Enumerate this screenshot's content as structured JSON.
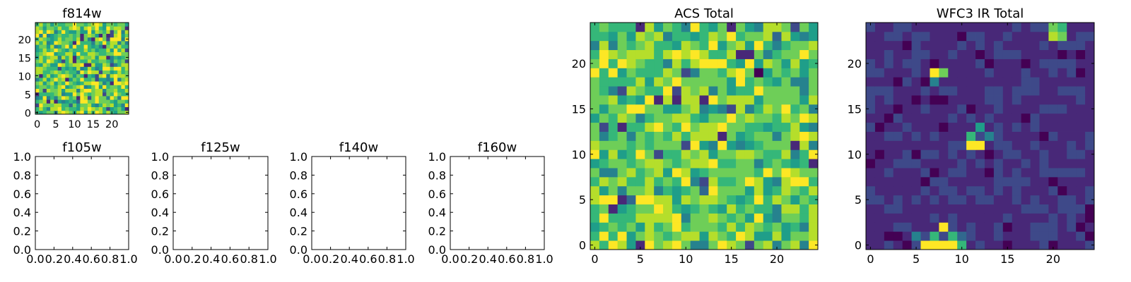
{
  "palette": {
    "viridis": [
      "#440154",
      "#482878",
      "#3e4989",
      "#31688e",
      "#26828e",
      "#1f9e89",
      "#35b779",
      "#6ece58",
      "#b5de2b",
      "#fde725"
    ]
  },
  "chart_data": [
    {
      "id": "f814w",
      "type": "heatmap",
      "title": "f814w",
      "xlim": [
        -0.5,
        24.5
      ],
      "ylim": [
        -0.5,
        24.5
      ],
      "xticks": [
        0,
        5,
        10,
        15,
        20
      ],
      "yticks": [
        0,
        5,
        10,
        15,
        20
      ],
      "colormap": "viridis",
      "grid_size": 25,
      "seed": 814,
      "pattern": "noise_high",
      "note": "25x25 noise image, mostly green-yellow values"
    },
    {
      "id": "f105w",
      "type": "empty",
      "title": "f105w",
      "xlim": [
        0,
        1
      ],
      "ylim": [
        0,
        1
      ],
      "xticks": [
        "0.0",
        "0.2",
        "0.4",
        "0.6",
        "0.8",
        "1.0"
      ],
      "yticks": [
        "0.0",
        "0.2",
        "0.4",
        "0.6",
        "0.8",
        "1.0"
      ]
    },
    {
      "id": "f125w",
      "type": "empty",
      "title": "f125w",
      "xlim": [
        0,
        1
      ],
      "ylim": [
        0,
        1
      ],
      "xticks": [
        "0.0",
        "0.2",
        "0.4",
        "0.6",
        "0.8",
        "1.0"
      ],
      "yticks": [
        "0.0",
        "0.2",
        "0.4",
        "0.6",
        "0.8",
        "1.0"
      ]
    },
    {
      "id": "f140w",
      "type": "empty",
      "title": "f140w",
      "xlim": [
        0,
        1
      ],
      "ylim": [
        0,
        1
      ],
      "xticks": [
        "0.0",
        "0.2",
        "0.4",
        "0.6",
        "0.8",
        "1.0"
      ],
      "yticks": [
        "0.0",
        "0.2",
        "0.4",
        "0.6",
        "0.8",
        "1.0"
      ]
    },
    {
      "id": "f160w",
      "type": "empty",
      "title": "f160w",
      "xlim": [
        0,
        1
      ],
      "ylim": [
        0,
        1
      ],
      "xticks": [
        "0.0",
        "0.2",
        "0.4",
        "0.6",
        "0.8",
        "1.0"
      ],
      "yticks": [
        "0.0",
        "0.2",
        "0.4",
        "0.6",
        "0.8",
        "1.0"
      ]
    },
    {
      "id": "acs_total",
      "type": "heatmap",
      "title": "ACS Total",
      "xlim": [
        -0.5,
        24.5
      ],
      "ylim": [
        -0.5,
        24.5
      ],
      "xticks": [
        0,
        5,
        10,
        15,
        20
      ],
      "yticks": [
        0,
        5,
        10,
        15,
        20
      ],
      "colormap": "viridis",
      "grid_size": 25,
      "seed": 2718,
      "pattern": "noise_high",
      "note": "25x25 noise image, mostly green-yellow values with scattered dark pixels"
    },
    {
      "id": "wfc3_ir_total",
      "type": "heatmap",
      "title": "WFC3 IR Total",
      "xlim": [
        -0.5,
        24.5
      ],
      "ylim": [
        -0.5,
        24.5
      ],
      "xticks": [
        0,
        5,
        10,
        15,
        20
      ],
      "yticks": [
        0,
        5,
        10,
        15,
        20
      ],
      "colormap": "viridis",
      "grid_size": 25,
      "seed": 3141,
      "pattern": "noise_low",
      "hotspots": [
        {
          "x": 20,
          "y": 23,
          "v": 0.85
        },
        {
          "x": 21,
          "y": 23,
          "v": 0.78
        },
        {
          "x": 20,
          "y": 24,
          "v": 0.8
        },
        {
          "x": 21,
          "y": 24,
          "v": 0.7
        },
        {
          "x": 7,
          "y": 19,
          "v": 1.0
        },
        {
          "x": 8,
          "y": 19,
          "v": 0.75
        },
        {
          "x": 7,
          "y": 18,
          "v": 0.45
        },
        {
          "x": 11,
          "y": 12,
          "v": 0.65
        },
        {
          "x": 12,
          "y": 13,
          "v": 0.55
        },
        {
          "x": 13,
          "y": 12,
          "v": 0.45
        },
        {
          "x": 11,
          "y": 11,
          "v": 1.0
        },
        {
          "x": 12,
          "y": 11,
          "v": 1.0
        },
        {
          "x": 8,
          "y": 2,
          "v": 1.0
        },
        {
          "x": 7,
          "y": 1,
          "v": 0.72
        },
        {
          "x": 9,
          "y": 1,
          "v": 0.7
        },
        {
          "x": 6,
          "y": 0,
          "v": 1.0
        },
        {
          "x": 7,
          "y": 0,
          "v": 1.0
        },
        {
          "x": 8,
          "y": 0,
          "v": 1.0
        },
        {
          "x": 9,
          "y": 0,
          "v": 1.0
        },
        {
          "x": 10,
          "y": 0,
          "v": 0.72
        },
        {
          "x": 5,
          "y": 1,
          "v": 0.4
        },
        {
          "x": 10,
          "y": 1,
          "v": 0.38
        }
      ]
    }
  ]
}
